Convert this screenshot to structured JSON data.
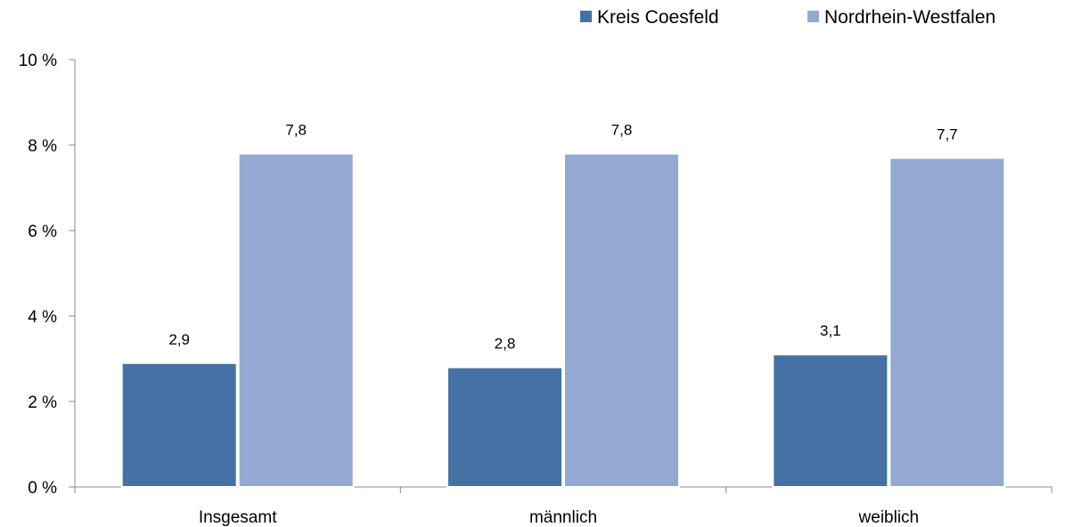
{
  "chart_data": {
    "type": "bar",
    "categories": [
      "Insgesamt",
      "männlich",
      "weiblich"
    ],
    "series": [
      {
        "name": "Kreis Coesfeld",
        "values": [
          2.9,
          2.8,
          3.1
        ],
        "labels": [
          "2,9",
          "2,8",
          "3,1"
        ],
        "color": "#4472a5"
      },
      {
        "name": "Nordrhein-Westfalen",
        "values": [
          7.8,
          7.8,
          7.7
        ],
        "labels": [
          "7,8",
          "7,8",
          "7,7"
        ],
        "color": "#94a9d1"
      }
    ],
    "ylim": [
      0,
      10
    ],
    "yticks": [
      0,
      2,
      4,
      6,
      8,
      10
    ],
    "ytick_labels": [
      "0 %",
      "2 %",
      "4 %",
      "6 %",
      "8 %",
      "10 %"
    ],
    "grid": false,
    "legend": "top-right"
  }
}
